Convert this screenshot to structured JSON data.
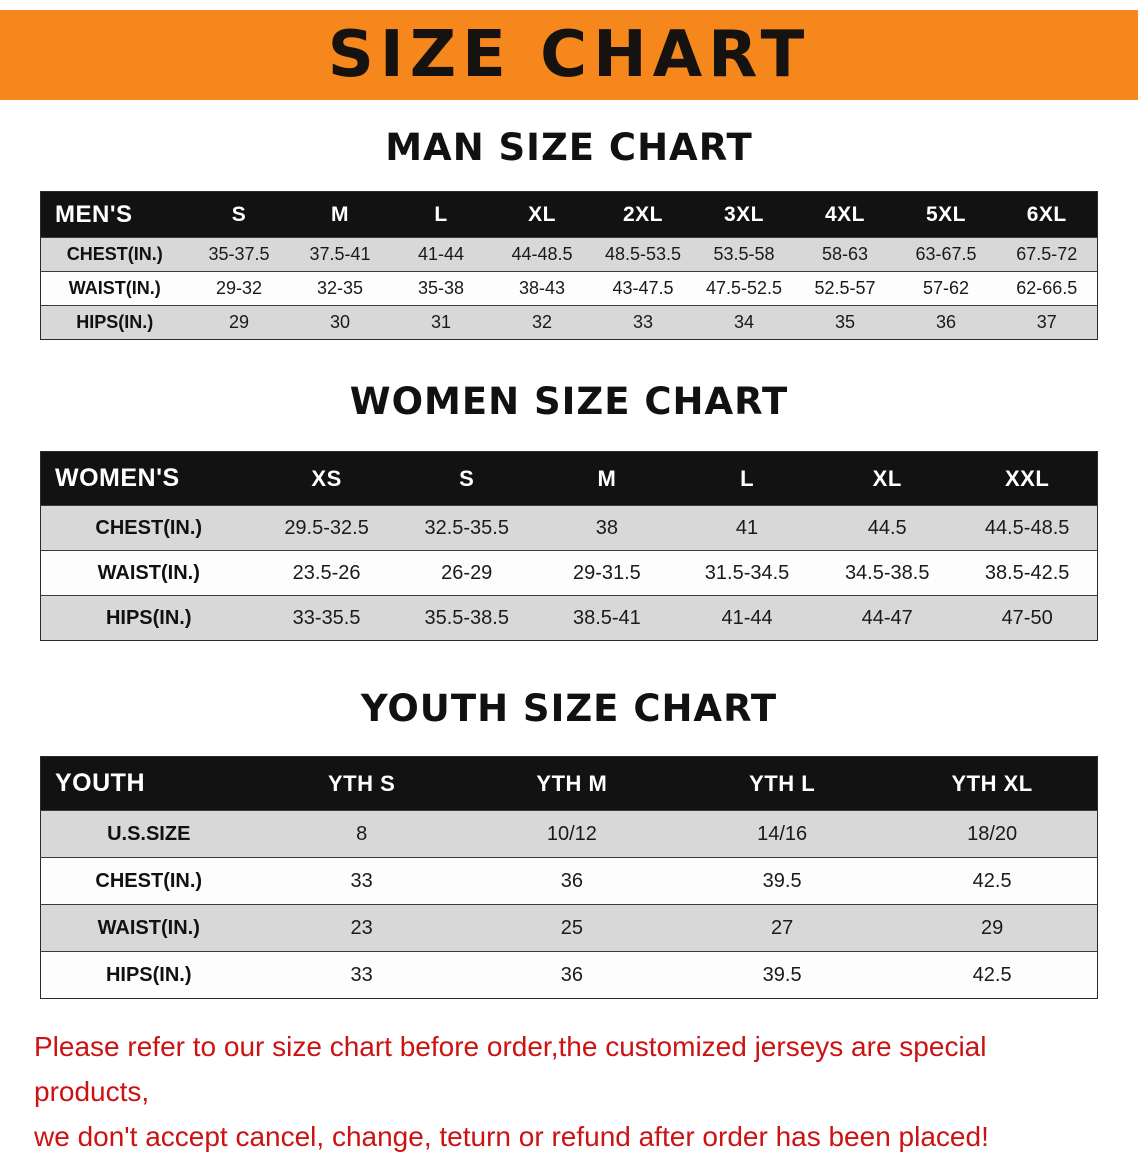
{
  "banner": {
    "title": "SIZE CHART"
  },
  "sections": [
    {
      "id": "men",
      "heading": "MAN SIZE CHART",
      "table": {
        "header": [
          "MEN'S",
          "S",
          "M",
          "L",
          "XL",
          "2XL",
          "3XL",
          "4XL",
          "5XL",
          "6XL"
        ],
        "rows": [
          [
            "CHEST(IN.)",
            "35-37.5",
            "37.5-41",
            "41-44",
            "44-48.5",
            "48.5-53.5",
            "53.5-58",
            "58-63",
            "63-67.5",
            "67.5-72"
          ],
          [
            "WAIST(IN.)",
            "29-32",
            "32-35",
            "35-38",
            "38-43",
            "43-47.5",
            "47.5-52.5",
            "52.5-57",
            "57-62",
            "62-66.5"
          ],
          [
            "HIPS(IN.)",
            "29",
            "30",
            "31",
            "32",
            "33",
            "34",
            "35",
            "36",
            "37"
          ]
        ]
      }
    },
    {
      "id": "women",
      "heading": "WOMEN SIZE CHART",
      "table": {
        "header": [
          "WOMEN'S",
          "XS",
          "S",
          "M",
          "L",
          "XL",
          "XXL"
        ],
        "rows": [
          [
            "CHEST(IN.)",
            "29.5-32.5",
            "32.5-35.5",
            "38",
            "41",
            "44.5",
            "44.5-48.5"
          ],
          [
            "WAIST(IN.)",
            "23.5-26",
            "26-29",
            "29-31.5",
            "31.5-34.5",
            "34.5-38.5",
            "38.5-42.5"
          ],
          [
            "HIPS(IN.)",
            "33-35.5",
            "35.5-38.5",
            "38.5-41",
            "41-44",
            "44-47",
            "47-50"
          ]
        ]
      }
    },
    {
      "id": "youth",
      "heading": "YOUTH SIZE CHART",
      "table": {
        "header": [
          "YOUTH",
          "YTH S",
          "YTH M",
          "YTH L",
          "YTH XL"
        ],
        "rows": [
          [
            "U.S.SIZE",
            "8",
            "10/12",
            "14/16",
            "18/20"
          ],
          [
            "CHEST(IN.)",
            "33",
            "36",
            "39.5",
            "42.5"
          ],
          [
            "WAIST(IN.)",
            "23",
            "25",
            "27",
            "29"
          ],
          [
            "HIPS(IN.)",
            "33",
            "36",
            "39.5",
            "42.5"
          ]
        ]
      }
    }
  ],
  "footer": {
    "line1": "Please refer to our size chart before order,the customized jerseys are special products,",
    "line2": "we don't accept cancel, change, teturn or refund after order has been placed!"
  },
  "colors": {
    "banner_bg": "#f6871d",
    "header_bg": "#121212",
    "row_stripe": "#d8d8d8",
    "footer_text": "#cc1212"
  }
}
